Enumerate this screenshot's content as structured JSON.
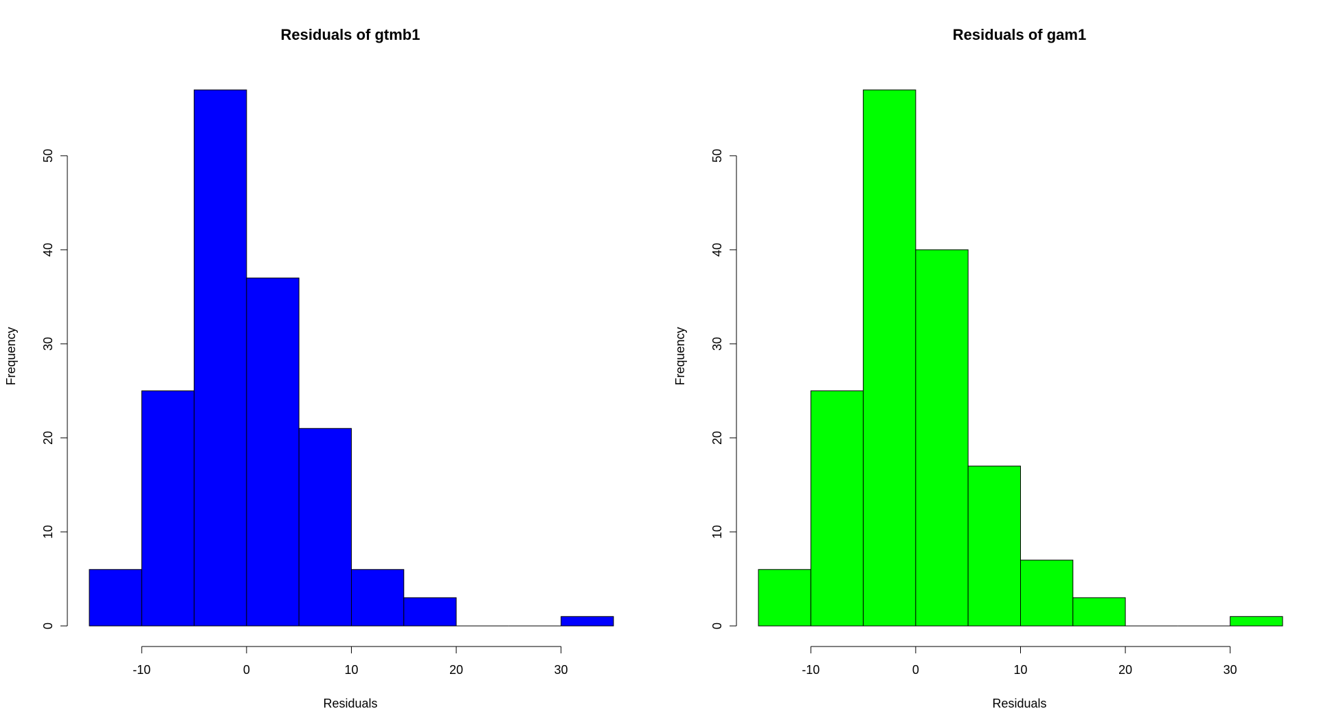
{
  "chart_data": [
    {
      "type": "bar",
      "title": "Residuals of gtmb1",
      "xlabel": "Residuals",
      "ylabel": "Frequency",
      "bin_edges": [
        -15,
        -10,
        -5,
        0,
        5,
        10,
        15,
        20,
        25,
        30,
        35
      ],
      "values": [
        6,
        25,
        57,
        37,
        21,
        6,
        3,
        0,
        0,
        1
      ],
      "x_ticks": [
        -10,
        0,
        10,
        20,
        30
      ],
      "y_ticks": [
        0,
        10,
        20,
        30,
        40,
        50
      ],
      "xlim": [
        -15,
        35
      ],
      "ylim": [
        0,
        57
      ],
      "color": "#0000ff",
      "grid": false
    },
    {
      "type": "bar",
      "title": "Residuals of gam1",
      "xlabel": "Residuals",
      "ylabel": "Frequency",
      "bin_edges": [
        -15,
        -10,
        -5,
        0,
        5,
        10,
        15,
        20,
        25,
        30,
        35
      ],
      "values": [
        6,
        25,
        57,
        40,
        17,
        7,
        3,
        0,
        0,
        1
      ],
      "x_ticks": [
        -10,
        0,
        10,
        20,
        30
      ],
      "y_ticks": [
        0,
        10,
        20,
        30,
        40,
        50
      ],
      "xlim": [
        -15,
        35
      ],
      "ylim": [
        0,
        57
      ],
      "color": "#00ff00",
      "grid": false
    }
  ]
}
